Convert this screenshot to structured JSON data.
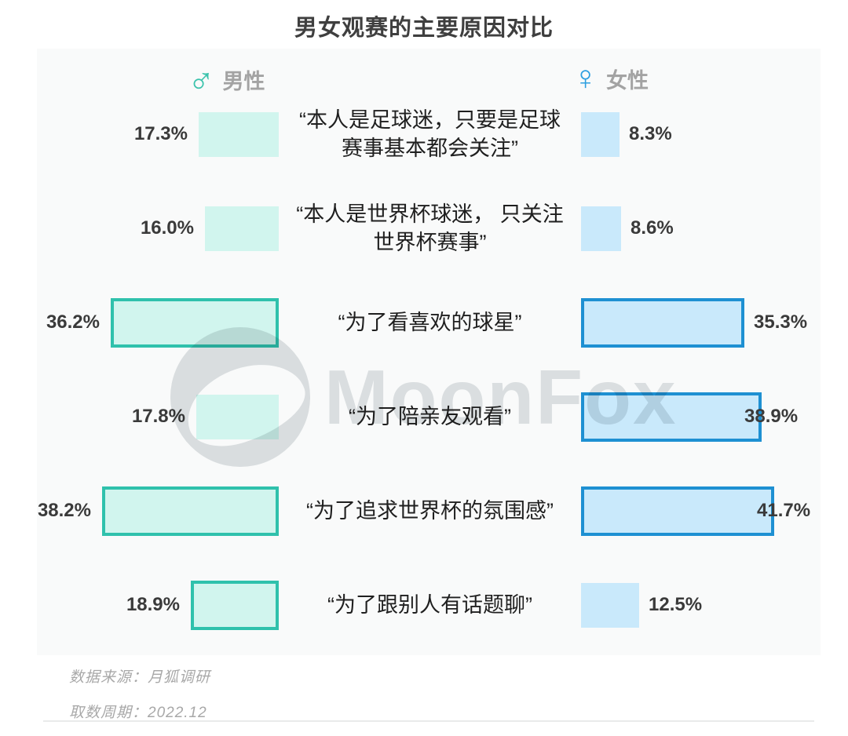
{
  "title": "男女观赛的主要原因对比",
  "legend": {
    "male_icon": "♂",
    "male_label": "男性",
    "female_icon": "♀",
    "female_label": "女性"
  },
  "watermark": "MoonFox",
  "footer": {
    "source": "数据来源：月狐调研",
    "period": "取数周期：2022.12"
  },
  "colors": {
    "male_fill": "#d1f5ee",
    "male_border": "#2fc1ac",
    "male_icon": "#3cc3ac",
    "female_fill": "#c9e9fb",
    "female_border": "#1e90d2",
    "female_icon": "#2d9fe0",
    "card_background": "#f9fafa",
    "title_text": "#3f3f3f",
    "category_text": "#1f1f1f",
    "value_text": "#3a3a3a",
    "legend_text": "#a3a3a3",
    "footer_text": "#a8a8a8"
  },
  "chart_data": {
    "type": "bar",
    "layout": "butterfly-horizontal",
    "title": "男女观赛的主要原因对比",
    "unit": "%",
    "value_suffix": "%",
    "axis_hidden": true,
    "legend_position": "top",
    "categories": [
      "“本人是足球迷，只要是足球赛事基本都会关注”",
      "“本人是世界杯球迷， 只关注世界杯赛事”",
      "“为了看喜欢的球星”",
      "“为了陪亲友观看”",
      "“为了追求世界杯的氛围感”",
      "“为了跟别人有话题聊”"
    ],
    "series": [
      {
        "name": "男性",
        "side": "left",
        "values": [
          17.3,
          16.0,
          36.2,
          17.8,
          38.2,
          18.9
        ],
        "highlighted": [
          false,
          false,
          true,
          false,
          true,
          true
        ]
      },
      {
        "name": "女性",
        "side": "right",
        "values": [
          8.3,
          8.6,
          35.3,
          38.9,
          41.7,
          12.5
        ],
        "highlighted": [
          false,
          false,
          true,
          true,
          true,
          false
        ]
      }
    ]
  }
}
